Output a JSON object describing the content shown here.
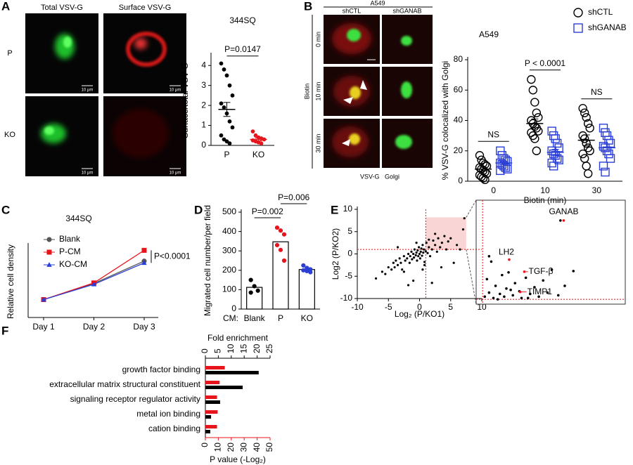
{
  "panel_labels": [
    "A",
    "B",
    "C",
    "D",
    "E",
    "F"
  ],
  "images": {
    "a": {
      "columns": [
        "Total VSV-G",
        "Surface VSV-G"
      ],
      "rows": [
        "P",
        "KO"
      ],
      "scale_bar": "10 μm"
    },
    "b": {
      "cell_line": "A549",
      "columns": [
        "shCTL",
        "shGANAB"
      ],
      "treatment": "Biotin",
      "rows": [
        "0 min",
        "10 min",
        "30 min"
      ],
      "legend": [
        {
          "name": "VSV-G",
          "color": "#e8141c"
        },
        {
          "name": "Golgi",
          "color": "#1fae2a"
        }
      ]
    }
  },
  "chart_data": [
    {
      "type": "strip",
      "title": "344SQ",
      "y_label": "Surface/total VSV-G",
      "categories": [
        "P",
        "KO"
      ],
      "ylim": [
        0,
        4.5
      ],
      "yticks": [
        0,
        1,
        2,
        3,
        4
      ],
      "series": [
        {
          "colors": [
            "#000000",
            "#e8141c"
          ],
          "marker": "circle",
          "values": [
            [
              4.1,
              3.8,
              3.5,
              3.0,
              2.5,
              2.1,
              1.9,
              1.6,
              1.2,
              0.9,
              0.5,
              0.3,
              0.2,
              0.1
            ],
            [
              0.7,
              0.5,
              0.4,
              0.35,
              0.3,
              0.25,
              0.2,
              0.15,
              0.1
            ]
          ],
          "means": [
            1.8,
            0.3
          ],
          "sems": [
            0.35,
            0.07
          ]
        }
      ],
      "annotations": [
        "P=0.0147"
      ]
    },
    {
      "type": "strip",
      "title": "A549",
      "x_label": "Biotin (min)",
      "y_label": "% VSV-G colocalized with Golgi",
      "categories": [
        "0",
        "10",
        "30"
      ],
      "ylim": [
        0,
        80
      ],
      "yticks": [
        0,
        20,
        40,
        60,
        80
      ],
      "series": [
        {
          "name": "shCTL",
          "color": "#000000",
          "marker": "circle",
          "values": [
            [
              17,
              14,
              12,
              11,
              10,
              9,
              8,
              7,
              6,
              5,
              4,
              3,
              2,
              1
            ],
            [
              67,
              60,
              52,
              45,
              42,
              40,
              38,
              36,
              35,
              33,
              32,
              30,
              28,
              20
            ],
            [
              48,
              45,
              42,
              38,
              35,
              30,
              28,
              25,
              22,
              20,
              18,
              15,
              10,
              5
            ]
          ],
          "means": [
            8,
            38,
            27
          ],
          "sems": [
            1.3,
            3,
            3.5
          ]
        },
        {
          "name": "shGANAB",
          "color": "#2b3fd6",
          "marker": "square",
          "values": [
            [
              20,
              17,
              15,
              14,
              13,
              12,
              11,
              10,
              9,
              8,
              7
            ],
            [
              33,
              30,
              28,
              25,
              22,
              20,
              18,
              17,
              15,
              14,
              12,
              10
            ],
            [
              35,
              32,
              30,
              27,
              25,
              23,
              22,
              20,
              18,
              15,
              10,
              6
            ]
          ],
          "means": [
            12,
            19,
            22
          ],
          "sems": [
            1.2,
            2,
            2.5
          ]
        }
      ],
      "annotations": [
        "NS",
        "P < 0.0001",
        "NS"
      ]
    },
    {
      "type": "line",
      "title": "344SQ",
      "y_label": "Relative cell density",
      "categories": [
        "Day 1",
        "Day 2",
        "Day 3"
      ],
      "ylim": [
        0,
        4
      ],
      "series": [
        {
          "name": "Blank",
          "color": "#555555",
          "marker": "circle",
          "values": [
            1,
            1.9,
            3.15
          ]
        },
        {
          "name": "P-CM",
          "color": "#e8141c",
          "marker": "square",
          "values": [
            1,
            1.93,
            3.75
          ]
        },
        {
          "name": "KO-CM",
          "color": "#2b3fd6",
          "marker": "triangle",
          "values": [
            1,
            1.85,
            3.05
          ]
        }
      ],
      "annotations": [
        "P<0.0001"
      ]
    },
    {
      "type": "bar",
      "y_label": "Migrated cell number/per field",
      "x_prefix": "CM:",
      "categories": [
        "Blank",
        "P",
        "KO"
      ],
      "values": [
        112,
        347,
        204
      ],
      "points": [
        [
          150,
          118,
          95,
          85
        ],
        [
          420,
          405,
          385,
          330,
          305,
          250
        ],
        [
          225,
          212,
          205,
          200,
          196,
          190
        ]
      ],
      "point_colors": [
        "#000000",
        "#e8141c",
        "#2b3fd6"
      ],
      "ylim": [
        0,
        500
      ],
      "yticks": [
        0,
        100,
        200,
        300,
        400,
        500
      ],
      "annotations": [
        "P=0.002",
        "P=0.006"
      ]
    },
    {
      "type": "scatter",
      "x_label": "Log₂ (P/KO1)",
      "y_label": "Log2 (P/KO2)",
      "xlim": [
        -10,
        10
      ],
      "ylim": [
        -10,
        10
      ],
      "xticks": [
        -10,
        -5,
        0,
        5,
        10
      ],
      "yticks": [
        -10,
        -5,
        0,
        5,
        10
      ],
      "xref": 1,
      "yref": 1,
      "series": [
        {
          "color": "#000000",
          "x": [
            -7,
            -6,
            -5.5,
            -5,
            -4.5,
            -4.2,
            -4,
            -3.8,
            -3.5,
            -3.2,
            -3,
            -2.8,
            -2.5,
            -2.3,
            -2,
            -1.8,
            -1.6,
            -1.5,
            -1.3,
            -1.2,
            -1,
            -0.9,
            -0.8,
            -0.6,
            -0.5,
            -0.4,
            -0.3,
            -0.2,
            -0.1,
            0,
            0.1,
            0.2,
            0.3,
            0.4,
            0.5,
            0.6,
            0.7,
            0.8,
            1,
            1.1,
            1.3,
            1.5,
            1.7,
            2,
            2.2,
            2.5,
            2.8,
            3,
            3.3,
            3.6,
            4,
            4.3,
            4.6,
            5,
            5.5,
            6,
            6.5,
            7,
            7.2,
            -2.5,
            -1,
            0.5,
            2,
            3.5,
            -3.5,
            1.5,
            -0.5,
            0.8,
            2.5,
            -1.8
          ],
          "y": [
            -5.5,
            -4,
            -4.5,
            -3,
            -3.5,
            -2,
            -3,
            -1.5,
            -2.5,
            -1,
            -2,
            -3.5,
            -0.5,
            -1.5,
            -1,
            0,
            -2,
            -0.5,
            0.5,
            -1.2,
            0,
            -0.8,
            1,
            -0.3,
            0.3,
            -1.5,
            0.8,
            -0.5,
            1.5,
            0,
            -1,
            0.5,
            1.2,
            -0.4,
            2,
            0.3,
            1,
            -1.8,
            0.6,
            2.5,
            0.2,
            1.5,
            -0.5,
            1,
            3,
            2,
            0.5,
            3.5,
            1.5,
            2.5,
            4,
            1,
            2.8,
            3.5,
            -2,
            2,
            1,
            5.5,
            8,
            -4,
            -6,
            -3.5,
            -6.5,
            -3,
            1.5,
            3.2,
            2.5,
            -2.5,
            4.5,
            -7
          ]
        }
      ]
    },
    {
      "type": "scatter",
      "xlim": [
        0.8,
        7.5
      ],
      "ylim": [
        0.8,
        8.2
      ],
      "series": [
        {
          "color": "#000000",
          "x": [
            1.1,
            1.2,
            1.3,
            1.4,
            1.5,
            1.6,
            1.8,
            1.9,
            2.0,
            2.1,
            2.2,
            2.4,
            2.5,
            2.7,
            2.8,
            3.0,
            3.2,
            3.4,
            3.6,
            3.8,
            4.0,
            4.2,
            4.5,
            4.6,
            4.8,
            5.2,
            1.3,
            1.7,
            2.3,
            3.1
          ],
          "y": [
            1.2,
            2.5,
            1.5,
            3.8,
            1.1,
            2.0,
            1.4,
            2.8,
            1.2,
            1.8,
            3.0,
            1.3,
            2.2,
            1.6,
            1.1,
            2.6,
            1.4,
            1.9,
            1.2,
            2.4,
            1.5,
            3.2,
            1.3,
            6.85,
            2.0,
            3.1,
            4.2,
            1.0,
            1.7,
            1.1
          ]
        },
        {
          "color": "#e8141c",
          "x": [
            4.75,
            2.23,
            2.93,
            2.74
          ],
          "y": [
            6.85,
            3.95,
            3.05,
            1.55
          ],
          "labels": [
            "GANAB",
            "LH2",
            "TGF-β",
            "TIMP1"
          ]
        }
      ]
    },
    {
      "type": "hbar",
      "categories": [
        "growth factor binding",
        "extracellular matrix structural constituent",
        "signaling receptor regulator activity",
        "metal ion binding",
        "cation binding"
      ],
      "x_label": "Fold enrichment",
      "x2_label": "P value (-Log₂)",
      "xlim": [
        0,
        25
      ],
      "xticks": [
        0,
        5,
        10,
        15,
        20,
        25
      ],
      "x2lim": [
        0,
        50
      ],
      "x2ticks": [
        0,
        10,
        20,
        30,
        40,
        50
      ],
      "series": [
        {
          "color": "#e8141c",
          "axis": "x2",
          "values": [
            15,
            11,
            9,
            9.5,
            9
          ]
        },
        {
          "color": "#000000",
          "values": [
            20.6,
            14.4,
            5.7,
            2.2,
            1.9
          ]
        }
      ]
    }
  ]
}
